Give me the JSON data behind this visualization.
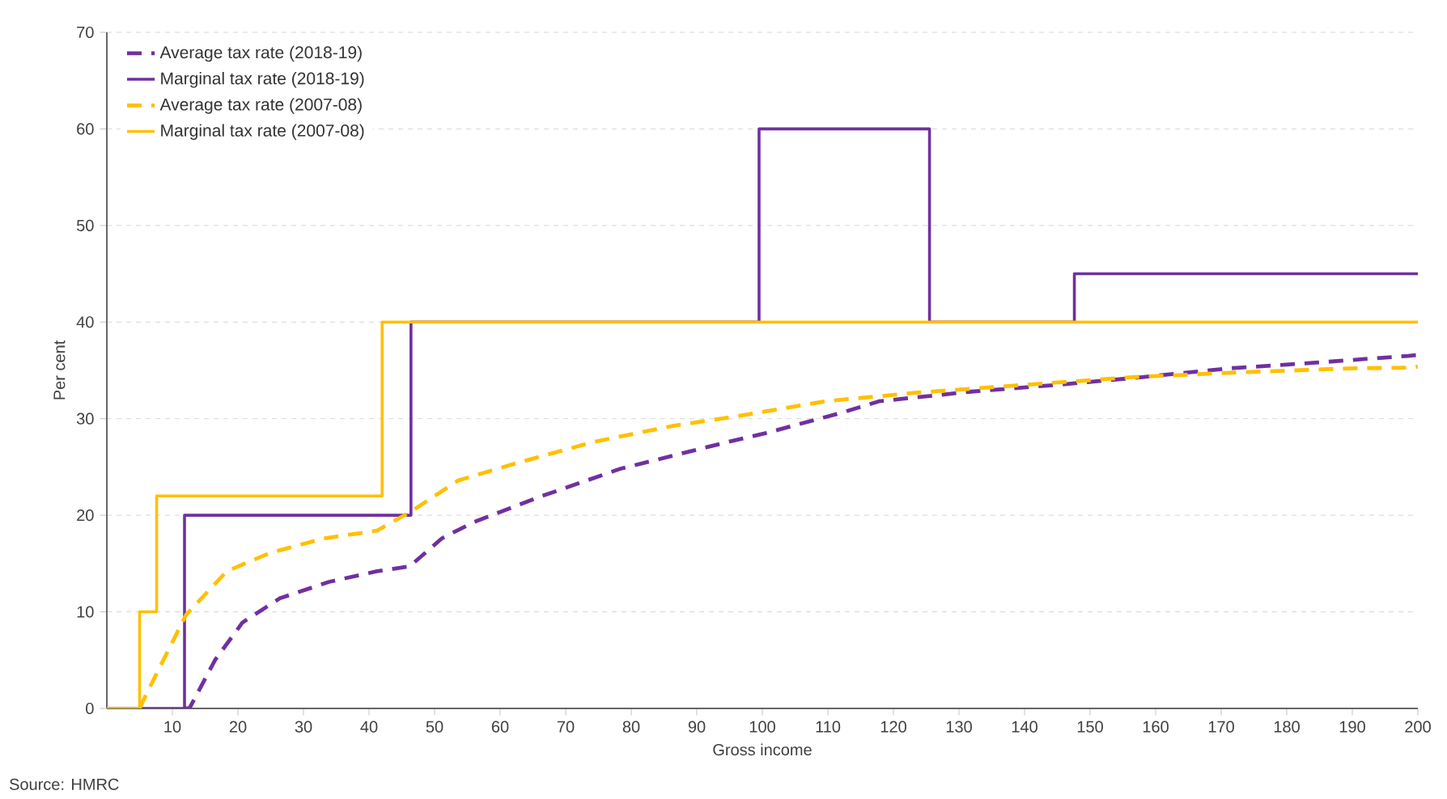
{
  "chart_data": {
    "type": "line",
    "xlabel": "Gross income",
    "ylabel": "Per cent",
    "annotations": [
      "Source: HMRC"
    ],
    "xlim": [
      0,
      200
    ],
    "ylim": [
      0,
      70
    ],
    "xticks": [
      10,
      20,
      30,
      40,
      50,
      60,
      70,
      80,
      90,
      100,
      110,
      120,
      130,
      140,
      150,
      160,
      170,
      180,
      190,
      200
    ],
    "yticks": [
      0,
      10,
      20,
      30,
      40,
      50,
      60,
      70
    ],
    "grid": "y",
    "legend": "top left",
    "series": [
      {
        "name": "Average tax rate (2018-19)",
        "color": "#7030a0",
        "line_style": "dashed",
        "x": [
          11.85,
          12.6,
          16.5,
          20.7,
          26.4,
          33.9,
          41.2,
          46.2,
          51.1,
          56,
          66,
          78.3,
          94.8,
          100.5,
          112,
          117.8,
          131.9,
          145,
          158,
          171,
          184.4,
          198.5,
          200
        ],
        "values": [
          0,
          0,
          5.0,
          8.9,
          11.4,
          13.1,
          14.2,
          14.7,
          17.6,
          19.3,
          21.9,
          24.8,
          27.6,
          28.5,
          30.6,
          31.8,
          32.8,
          33.5,
          34.3,
          35.2,
          35.8,
          36.5,
          36.6
        ]
      },
      {
        "name": "Marginal tax rate (2018-19)",
        "color": "#7030a0",
        "type": "step",
        "line_style": "solid",
        "x": [
          0,
          11.85,
          46.4,
          99.5,
          125.5,
          147.6,
          200
        ],
        "values": [
          0,
          20,
          40,
          60,
          40,
          45,
          45
        ]
      },
      {
        "name": "Average tax rate (2007-08)",
        "color": "#ffc000",
        "line_style": "dashed",
        "x": [
          5,
          5.9,
          8.4,
          12.1,
          18.3,
          24.9,
          33.1,
          41.2,
          46.2,
          53.6,
          62,
          74.3,
          86.7,
          94.8,
          109.6,
          123.7,
          140,
          156.5,
          173,
          189.4,
          199.3,
          200
        ],
        "values": [
          0,
          1.3,
          4.7,
          9.7,
          14.2,
          16.1,
          17.6,
          18.4,
          20.3,
          23.6,
          25.3,
          27.6,
          29.3,
          30.1,
          31.8,
          32.7,
          33.5,
          34.3,
          34.8,
          35.2,
          35.3,
          35.4
        ]
      },
      {
        "name": "Marginal tax rate (2007-08)",
        "color": "#ffc000",
        "type": "step",
        "line_style": "solid",
        "x": [
          0,
          5,
          7.6,
          42,
          200
        ],
        "values": [
          0,
          10,
          22,
          40,
          40
        ]
      }
    ]
  }
}
